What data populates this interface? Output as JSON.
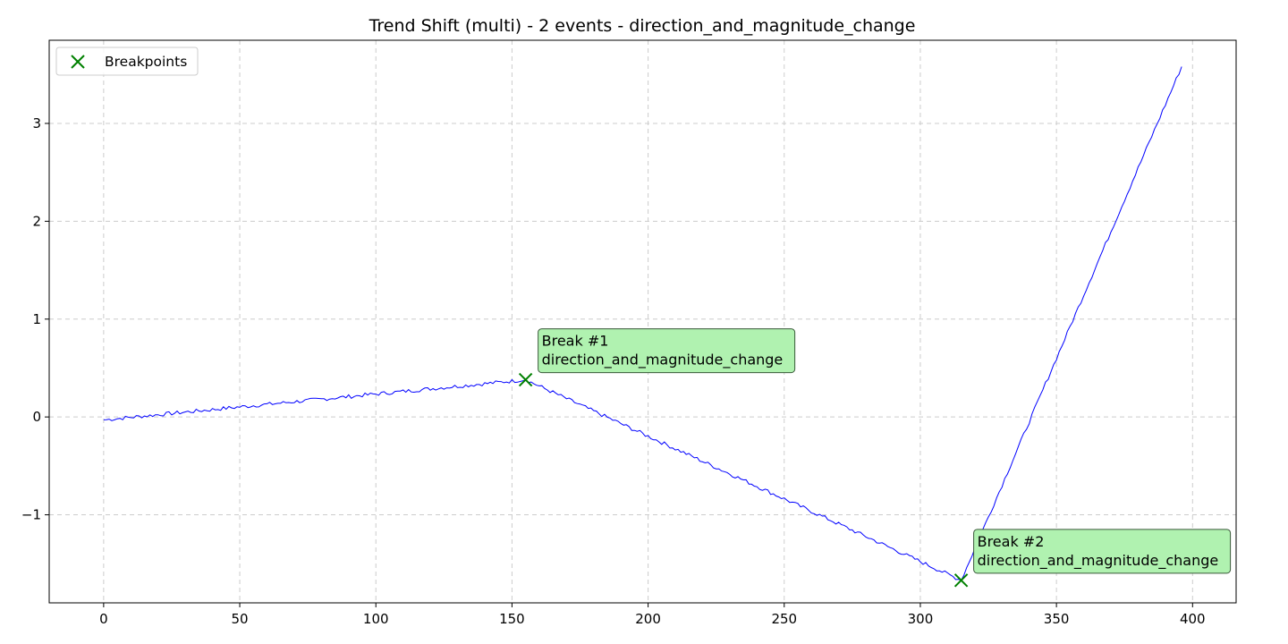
{
  "chart_data": {
    "type": "line",
    "title": "Trend Shift (multi) - 2 events - direction_and_magnitude_change",
    "xlabel": "",
    "ylabel": "",
    "xlim": [
      -20,
      416
    ],
    "ylim": [
      -1.9,
      3.85
    ],
    "xticks": [
      0,
      50,
      100,
      150,
      200,
      250,
      300,
      350,
      400
    ],
    "yticks": [
      -1,
      0,
      1,
      2,
      3
    ],
    "ytick_labels": [
      "−1",
      "0",
      "1",
      "2",
      "3"
    ],
    "grid": true,
    "legend": {
      "placement": "top-left",
      "entries": [
        {
          "label": "Breakpoints",
          "marker": "x",
          "color": "#008000"
        }
      ]
    },
    "series": [
      {
        "color": "#0000ff",
        "segments": [
          {
            "x_start": 0,
            "x_end": 155,
            "y_start": -0.03,
            "y_end": 0.38
          },
          {
            "x_start": 155,
            "x_end": 315,
            "y_start": 0.38,
            "y_end": -1.67
          },
          {
            "x_start": 315,
            "x_end": 396,
            "y_start": -1.67,
            "y_end": 3.58
          }
        ]
      }
    ],
    "breakpoints": {
      "color": "#008000",
      "points": [
        {
          "x": 155,
          "y": 0.38,
          "label_line1": "Break #1",
          "label_line2": "direction_and_magnitude_change"
        },
        {
          "x": 315,
          "y": -1.67,
          "label_line1": "Break #2",
          "label_line2": "direction_and_magnitude_change"
        }
      ]
    }
  }
}
